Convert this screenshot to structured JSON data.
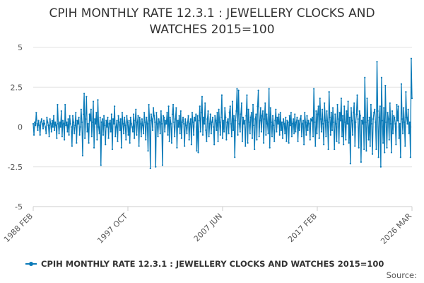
{
  "chart_data": {
    "type": "line",
    "title_lines": [
      "CPIH MONTHLY RATE 12.3.1 : JEWELLERY CLOCKS AND",
      "WATCHES 2015=100"
    ],
    "title": "CPIH MONTHLY RATE 12.3.1 : JEWELLERY CLOCKS AND WATCHES 2015=100",
    "x_range": [
      "1988 FEB",
      "2026 MAR"
    ],
    "x_ticks": [
      "1988 FEB",
      "1997 OCT",
      "2007 JUN",
      "2017 FEB",
      "2026 MAR"
    ],
    "y_ticks": [
      "5",
      "2.5",
      "0",
      "-2.5",
      "-5"
    ],
    "ylim": [
      -5,
      5
    ],
    "grid": true,
    "legend_position": "bottom",
    "source_label": "Source:",
    "color": "#0a7ab8",
    "series": [
      {
        "name": "CPIH MONTHLY RATE 12.3.1 : JEWELLERY CLOCKS AND WATCHES 2015=100",
        "values": [
          0.2,
          -0.5,
          0.3,
          0.1,
          0.9,
          0.2,
          -0.2,
          0.4,
          0.1,
          -0.5,
          0.3,
          0.5,
          0.2,
          -0.1,
          0.4,
          0.2,
          0.0,
          -0.4,
          0.6,
          0.3,
          0.1,
          -0.6,
          0.5,
          0.2,
          -0.3,
          0.4,
          0.0,
          0.7,
          -0.2,
          0.3,
          0.1,
          -0.7,
          1.4,
          0.2,
          -0.4,
          0.3,
          0.0,
          1.0,
          -0.6,
          0.4,
          0.2,
          -0.8,
          1.4,
          0.1,
          0.3,
          -0.3,
          0.5,
          -0.5,
          0.7,
          0.2,
          0.0,
          -1.2,
          0.7,
          0.3,
          -0.4,
          0.1,
          0.9,
          -1.0,
          0.4,
          0.2,
          0.6,
          -0.5,
          0.0,
          1.1,
          0.3,
          -1.8,
          0.8,
          2.1,
          -0.7,
          0.5,
          1.9,
          -0.3,
          0.2,
          -1.0,
          0.8,
          0.4,
          1.1,
          -0.6,
          0.3,
          1.6,
          -1.3,
          0.5,
          0.2,
          0.9,
          -0.8,
          1.7,
          0.0,
          -0.4,
          0.6,
          -2.4,
          0.3,
          0.5,
          -0.5,
          0.7,
          0.1,
          -1.1,
          0.4,
          0.0,
          0.6,
          -0.7,
          0.2,
          0.4,
          -0.3,
          0.8,
          -1.4,
          0.5,
          0.2,
          1.3,
          -0.6,
          0.0,
          0.4,
          -0.9,
          0.7,
          0.3,
          -0.2,
          0.5,
          -1.3,
          0.9,
          0.2,
          -0.4,
          0.6,
          0.1,
          -0.8,
          0.7,
          0.3,
          -0.5,
          0.4,
          -1.0,
          0.6,
          0.2,
          0.0,
          -0.3,
          0.8,
          -0.7,
          0.4,
          1.1,
          -0.5,
          0.3,
          0.7,
          -1.2,
          0.6,
          0.2,
          -0.6,
          0.5,
          0.1,
          -0.4,
          0.9,
          0.3,
          -0.8,
          0.6,
          0.2,
          -1.5,
          1.4,
          0.4,
          -2.6,
          0.8,
          0.5,
          -0.2,
          1.2,
          0.7,
          0.3,
          -2.5,
          0.9,
          0.2,
          -0.6,
          0.5,
          0.3,
          -0.4,
          1.0,
          0.2,
          -2.4,
          0.7,
          0.6,
          -0.3,
          0.4,
          0.2,
          0.9,
          -0.5,
          1.3,
          -0.9,
          0.6,
          0.2,
          -1.0,
          0.8,
          1.4,
          0.3,
          -0.6,
          0.5,
          1.2,
          -1.3,
          0.4,
          0.0,
          0.7,
          -0.4,
          1.0,
          -0.7,
          0.3,
          0.6,
          0.2,
          -1.2,
          0.5,
          0.1,
          -0.4,
          0.3,
          0.7,
          -0.8,
          0.2,
          0.5,
          -1.1,
          0.9,
          0.3,
          -0.5,
          0.6,
          0.4,
          0.8,
          -1.5,
          0.7,
          -1.6,
          0.4,
          1.3,
          -0.3,
          0.9,
          1.9,
          -0.5,
          0.6,
          0.2,
          1.5,
          -0.2,
          -0.9,
          0.5,
          1.0,
          -0.6,
          0.2,
          0.8,
          -0.4,
          0.3,
          0.6,
          0.0,
          -1.1,
          0.7,
          0.4,
          -0.2,
          0.9,
          -0.9,
          1.1,
          0.3,
          -0.5,
          0.6,
          2.0,
          -0.7,
          0.4,
          -0.3,
          1.2,
          0.6,
          -0.8,
          0.3,
          0.5,
          -0.4,
          0.9,
          1.3,
          0.2,
          -0.6,
          1.6,
          -0.2,
          0.7,
          -1.9,
          0.4,
          1.0,
          2.4,
          -0.5,
          2.3,
          0.2,
          -0.3,
          0.8,
          1.5,
          -0.9,
          0.6,
          0.2,
          0.4,
          -1.2,
          0.7,
          2.0,
          -1.0,
          1.1,
          0.3,
          -0.4,
          0.6,
          0.9,
          -0.7,
          1.4,
          0.1,
          -1.4,
          0.5,
          0.8,
          -0.8,
          1.3,
          2.3,
          -0.6,
          0.4,
          1.2,
          -0.3,
          0.7,
          1.0,
          -1.0,
          0.5,
          1.5,
          -0.5,
          0.8,
          0.2,
          -0.4,
          2.4,
          -1.3,
          1.2,
          0.3,
          -0.6,
          0.7,
          0.1,
          -0.9,
          0.4,
          1.1,
          -0.3,
          0.6,
          0.2,
          0.8,
          -0.5,
          0.9,
          -0.2,
          0.3,
          -0.7,
          0.5,
          0.2,
          -0.4,
          0.6,
          -0.9,
          0.4,
          0.3,
          -1.0,
          0.7,
          0.1,
          0.9,
          -0.6,
          0.2,
          0.5,
          -0.4,
          0.8,
          -0.3,
          0.3,
          0.6,
          -0.9,
          0.4,
          -0.2,
          0.5,
          0.7,
          -0.6,
          0.2,
          0.4,
          -1.1,
          0.9,
          0.3,
          -0.5,
          0.7,
          -0.2,
          0.4,
          0.2,
          -0.8,
          0.5,
          0.4,
          0.6,
          -0.6,
          2.4,
          0.3,
          -1.2,
          1.0,
          -0.4,
          0.8,
          1.3,
          -0.7,
          1.8,
          0.5,
          -0.3,
          1.1,
          0.2,
          -1.1,
          1.5,
          0.4,
          -0.6,
          1.0,
          0.3,
          -1.4,
          2.2,
          0.6,
          -0.5,
          0.9,
          -0.2,
          1.2,
          0.3,
          -1.4,
          0.8,
          0.2,
          -0.9,
          1.4,
          0.5,
          -1.0,
          0.9,
          0.4,
          1.8,
          -0.6,
          0.7,
          -1.1,
          1.3,
          0.3,
          -0.8,
          1.0,
          0.2,
          1.6,
          -1.0,
          0.6,
          -2.3,
          1.2,
          0.4,
          -0.5,
          0.9,
          1.5,
          -1.2,
          0.3,
          0.8,
          2.0,
          0.5,
          -1.3,
          1.0,
          0.7,
          -2.2,
          0.4,
          0.2,
          0.6,
          -1.4,
          3.1,
          0.3,
          -1.5,
          1.8,
          0.4,
          -0.8,
          0.6,
          -1.2,
          1.4,
          0.2,
          -1.7,
          0.5,
          0.9,
          1.1,
          0.3,
          -1.4,
          4.1,
          1.0,
          -1.9,
          0.6,
          1.3,
          -2.5,
          3.1,
          0.4,
          -1.0,
          1.2,
          -1.6,
          2.6,
          0.3,
          -1.3,
          0.9,
          0.5,
          -0.8,
          1.5,
          0.2,
          -1.6,
          1.0,
          -0.4,
          0.7,
          0.6,
          0.2,
          -1.1,
          1.4,
          0.4,
          1.3,
          -0.7,
          0.2,
          -1.9,
          2.7,
          0.5,
          -0.4,
          1.2,
          0.3,
          -1.2,
          2.2,
          0.6,
          0.2,
          1.1,
          -0.4,
          0.3,
          -1.9,
          4.3,
          1.8
        ]
      }
    ]
  }
}
